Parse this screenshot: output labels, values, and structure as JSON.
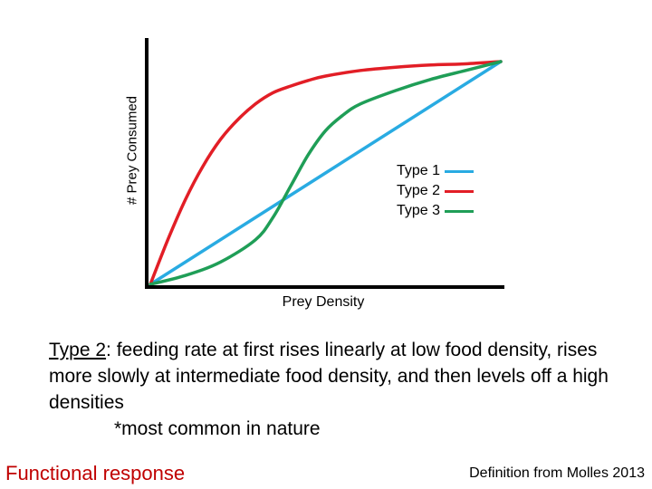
{
  "chart_data": {
    "type": "line",
    "title": "",
    "xlabel": "Prey Density",
    "ylabel": "# Prey Consumed",
    "xlim": [
      0,
      1
    ],
    "ylim": [
      0,
      1
    ],
    "grid": false,
    "legend_position": "lower-right",
    "series": [
      {
        "name": "Type 1",
        "color": "#29abe2",
        "x": [
          0,
          1
        ],
        "y": [
          0,
          1
        ]
      },
      {
        "name": "Type 2",
        "color": "#e21e26",
        "x": [
          0,
          0.05,
          0.1,
          0.15,
          0.2,
          0.25,
          0.3,
          0.35,
          0.4,
          0.45,
          0.5,
          0.6,
          0.7,
          0.8,
          0.9,
          1.0
        ],
        "y": [
          0,
          0.2,
          0.38,
          0.53,
          0.65,
          0.74,
          0.81,
          0.86,
          0.89,
          0.915,
          0.935,
          0.96,
          0.975,
          0.985,
          0.99,
          1.0
        ]
      },
      {
        "name": "Type 3",
        "color": "#1f9e57",
        "x": [
          0,
          0.1,
          0.2,
          0.3,
          0.35,
          0.4,
          0.45,
          0.5,
          0.55,
          0.6,
          0.7,
          0.8,
          0.9,
          1.0
        ],
        "y": [
          0,
          0.04,
          0.1,
          0.2,
          0.3,
          0.44,
          0.58,
          0.69,
          0.76,
          0.81,
          0.87,
          0.92,
          0.96,
          1.0
        ]
      }
    ]
  },
  "caption": {
    "type_label": "Type 2",
    "body": ":  feeding rate at first rises linearly at low food density, rises more slowly at intermediate food density, and then levels off a high densities",
    "note": "*most common in nature"
  },
  "footer": {
    "left": "Functional response",
    "right": "Definition from Molles 2013"
  }
}
